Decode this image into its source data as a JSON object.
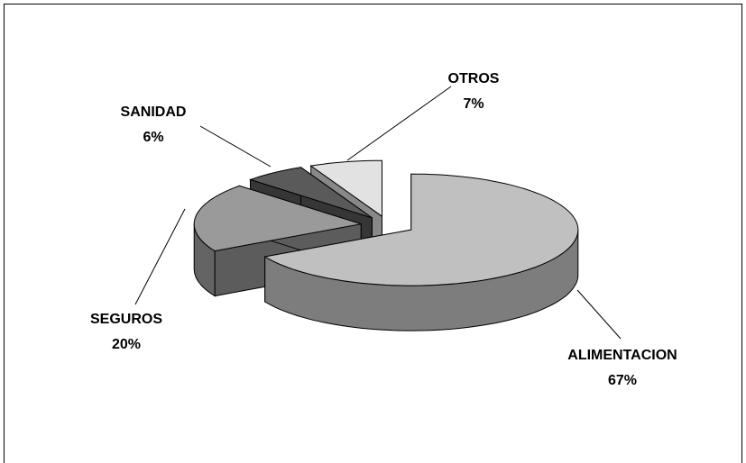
{
  "chart_data": {
    "type": "pie",
    "categories": [
      "ALIMENTACION",
      "SEGUROS",
      "SANIDAD",
      "OTROS"
    ],
    "values": [
      67,
      20,
      6,
      7
    ],
    "value_labels": [
      "67%",
      "20%",
      "6%",
      "7%"
    ],
    "colors": [
      "#c0c0c0",
      "#9a9a9a",
      "#5a5a5a",
      "#e2e2e2"
    ],
    "three_d": true,
    "exploded": true
  }
}
